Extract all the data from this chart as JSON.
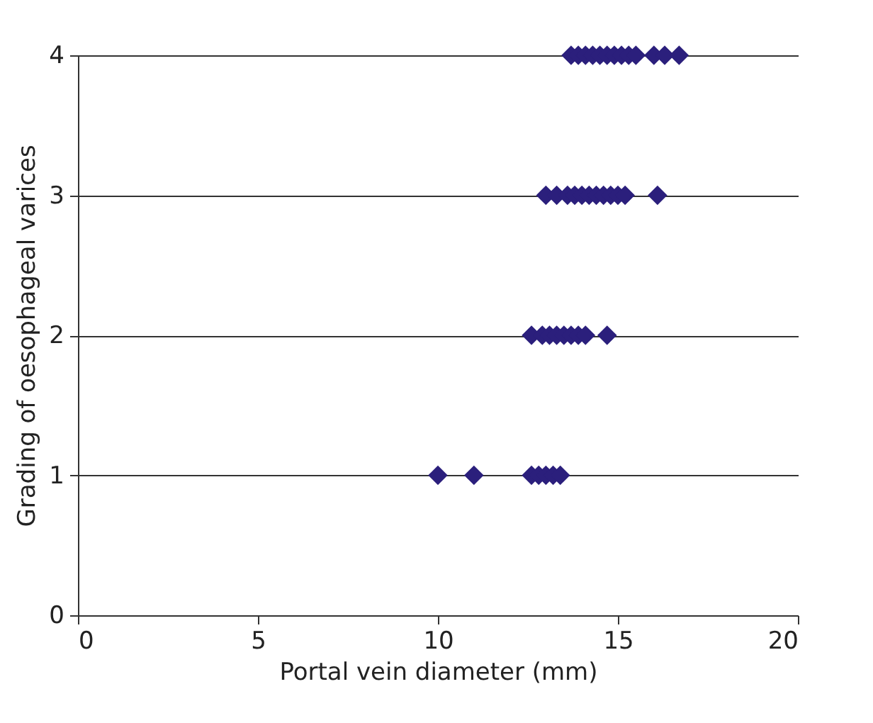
{
  "chart_data": {
    "type": "scatter",
    "xlabel": "Portal vein diameter (mm)",
    "ylabel": "Grading of oesophageal varices",
    "x": [
      10.0,
      11.0,
      12.6,
      12.8,
      13.0,
      13.2,
      13.4,
      12.6,
      12.9,
      13.1,
      13.3,
      13.5,
      13.7,
      13.9,
      14.1,
      14.7,
      13.0,
      13.3,
      13.6,
      13.8,
      14.0,
      14.2,
      14.4,
      14.6,
      14.8,
      15.0,
      15.2,
      16.1,
      13.7,
      13.9,
      14.1,
      14.3,
      14.5,
      14.7,
      14.9,
      15.1,
      15.3,
      15.5,
      16.0,
      16.3,
      16.7
    ],
    "series": [
      {
        "color": "#2b1f7c",
        "values": [
          1,
          1,
          1,
          1,
          1,
          1,
          1,
          2,
          2,
          2,
          2,
          2,
          2,
          2,
          2,
          2,
          3,
          3,
          3,
          3,
          3,
          3,
          3,
          3,
          3,
          3,
          3,
          3,
          4,
          4,
          4,
          4,
          4,
          4,
          4,
          4,
          4,
          4,
          4,
          4,
          4
        ]
      }
    ],
    "xlim": [
      0,
      20
    ],
    "xticks": [
      0,
      5,
      10,
      15,
      20
    ],
    "ylim": [
      0,
      4
    ],
    "yticks": [
      0,
      1,
      2,
      3,
      4
    ],
    "grid": "y",
    "marker": "diamond"
  }
}
